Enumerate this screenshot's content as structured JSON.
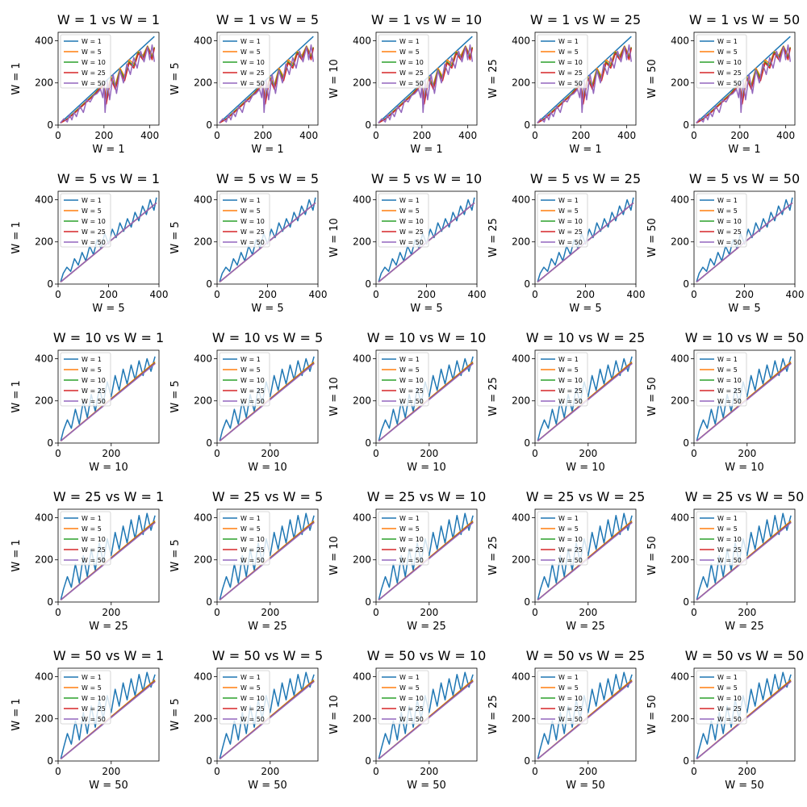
{
  "chart_data": {
    "type": "line",
    "grid": false,
    "legend_placement": "upper-left",
    "window_sizes": [
      1,
      5,
      10,
      25,
      50
    ],
    "series_colors": [
      "#1f77b4",
      "#ff7f0e",
      "#2ca02c",
      "#d62728",
      "#9467bd"
    ],
    "series_names": [
      "W = 1",
      "W = 5",
      "W = 10",
      "W = 25",
      "W = 50"
    ],
    "row_xlim": [
      [
        0,
        440
      ],
      [
        0,
        400
      ],
      [
        0,
        380
      ],
      [
        0,
        380
      ],
      [
        0,
        380
      ]
    ],
    "row_xticks": [
      [
        0,
        200,
        400
      ],
      [
        0,
        200,
        400
      ],
      [
        0,
        200
      ],
      [
        0,
        200
      ],
      [
        0,
        200
      ]
    ],
    "ylim": [
      0,
      440
    ],
    "yticks": [
      0,
      200,
      400
    ],
    "subplots": [
      {
        "title": "W = 1 vs W = 1",
        "xlabel": "W = 1",
        "ylabel": "W = 1",
        "row": 0,
        "col": 0
      },
      {
        "title": "W = 1 vs W = 5",
        "xlabel": "W = 1",
        "ylabel": "W = 5",
        "row": 0,
        "col": 1
      },
      {
        "title": "W = 1 vs W = 10",
        "xlabel": "W = 1",
        "ylabel": "W = 10",
        "row": 0,
        "col": 2
      },
      {
        "title": "W = 1 vs W = 25",
        "xlabel": "W = 1",
        "ylabel": "W = 25",
        "row": 0,
        "col": 3
      },
      {
        "title": "W = 1 vs W = 50",
        "xlabel": "W = 1",
        "ylabel": "W = 50",
        "row": 0,
        "col": 4
      },
      {
        "title": "W = 5 vs W = 1",
        "xlabel": "W = 5",
        "ylabel": "W = 1",
        "row": 1,
        "col": 0
      },
      {
        "title": "W = 5 vs W = 5",
        "xlabel": "W = 5",
        "ylabel": "W = 5",
        "row": 1,
        "col": 1
      },
      {
        "title": "W = 5 vs W = 10",
        "xlabel": "W = 5",
        "ylabel": "W = 10",
        "row": 1,
        "col": 2
      },
      {
        "title": "W = 5 vs W = 25",
        "xlabel": "W = 5",
        "ylabel": "W = 25",
        "row": 1,
        "col": 3
      },
      {
        "title": "W = 5 vs W = 50",
        "xlabel": "W = 5",
        "ylabel": "W = 50",
        "row": 1,
        "col": 4
      },
      {
        "title": "W = 10 vs W = 1",
        "xlabel": "W = 10",
        "ylabel": "W = 1",
        "row": 2,
        "col": 0
      },
      {
        "title": "W = 10 vs W = 5",
        "xlabel": "W = 10",
        "ylabel": "W = 5",
        "row": 2,
        "col": 1
      },
      {
        "title": "W = 10 vs W = 10",
        "xlabel": "W = 10",
        "ylabel": "W = 10",
        "row": 2,
        "col": 2
      },
      {
        "title": "W = 10 vs W = 25",
        "xlabel": "W = 10",
        "ylabel": "W = 25",
        "row": 2,
        "col": 3
      },
      {
        "title": "W = 10 vs W = 50",
        "xlabel": "W = 10",
        "ylabel": "W = 50",
        "row": 2,
        "col": 4
      },
      {
        "title": "W = 25 vs W = 1",
        "xlabel": "W = 25",
        "ylabel": "W = 1",
        "row": 3,
        "col": 0
      },
      {
        "title": "W = 25 vs W = 5",
        "xlabel": "W = 25",
        "ylabel": "W = 5",
        "row": 3,
        "col": 1
      },
      {
        "title": "W = 25 vs W = 10",
        "xlabel": "W = 25",
        "ylabel": "W = 10",
        "row": 3,
        "col": 2
      },
      {
        "title": "W = 25 vs W = 25",
        "xlabel": "W = 25",
        "ylabel": "W = 25",
        "row": 3,
        "col": 3
      },
      {
        "title": "W = 25 vs W = 50",
        "xlabel": "W = 25",
        "ylabel": "W = 50",
        "row": 3,
        "col": 4
      },
      {
        "title": "W = 50 vs W = 1",
        "xlabel": "W = 50",
        "ylabel": "W = 1",
        "row": 4,
        "col": 0
      },
      {
        "title": "W = 50 vs W = 5",
        "xlabel": "W = 50",
        "ylabel": "W = 5",
        "row": 4,
        "col": 1
      },
      {
        "title": "W = 50 vs W = 10",
        "xlabel": "W = 50",
        "ylabel": "W = 10",
        "row": 4,
        "col": 2
      },
      {
        "title": "W = 50 vs W = 25",
        "xlabel": "W = 50",
        "ylabel": "W = 25",
        "row": 4,
        "col": 3
      },
      {
        "title": "W = 50 vs W = 50",
        "xlabel": "W = 50",
        "ylabel": "W = 50",
        "row": 4,
        "col": 4
      }
    ],
    "series_by_row": [
      [
        {
          "name": "W = 1",
          "x": [
            10,
            420
          ],
          "y": [
            10,
            420
          ]
        },
        {
          "name": "W = 5",
          "x": [
            10,
            40,
            70,
            100,
            130,
            160,
            180,
            200,
            210,
            230,
            250,
            270,
            290,
            310,
            330,
            350,
            370,
            390,
            410,
            420
          ],
          "y": [
            10,
            30,
            60,
            90,
            120,
            150,
            175,
            195,
            120,
            230,
            190,
            270,
            230,
            310,
            290,
            350,
            330,
            375,
            330,
            370
          ]
        },
        {
          "name": "W = 10",
          "x": [
            10,
            40,
            70,
            100,
            130,
            160,
            180,
            200,
            210,
            230,
            250,
            270,
            290,
            310,
            330,
            350,
            370,
            390,
            410,
            420
          ],
          "y": [
            10,
            30,
            58,
            88,
            118,
            148,
            172,
            192,
            110,
            225,
            180,
            262,
            220,
            300,
            280,
            345,
            320,
            372,
            320,
            368
          ]
        },
        {
          "name": "W = 25",
          "x": [
            10,
            40,
            70,
            100,
            130,
            160,
            180,
            200,
            210,
            230,
            250,
            270,
            290,
            310,
            330,
            350,
            370,
            390,
            410,
            420
          ],
          "y": [
            10,
            28,
            55,
            85,
            115,
            145,
            170,
            190,
            100,
            220,
            170,
            255,
            210,
            295,
            270,
            340,
            310,
            370,
            310,
            365
          ]
        },
        {
          "name": "W = 50",
          "x": [
            10,
            25,
            40,
            50,
            60,
            70,
            80,
            95,
            110,
            125,
            140,
            155,
            170,
            185,
            195,
            200,
            205,
            215,
            225,
            240,
            255,
            270,
            285,
            300,
            315,
            330,
            345,
            360,
            375,
            390,
            400,
            410,
            420
          ],
          "y": [
            10,
            30,
            15,
            50,
            25,
            60,
            40,
            90,
            60,
            120,
            110,
            140,
            150,
            170,
            130,
            200,
            60,
            210,
            120,
            240,
            150,
            260,
            200,
            290,
            240,
            320,
            270,
            350,
            300,
            370,
            310,
            380,
            300
          ]
        }
      ],
      [
        {
          "name": "W = 1",
          "x": [
            10,
            20,
            35,
            50,
            65,
            80,
            95,
            110,
            125,
            140,
            155,
            170,
            185,
            200,
            215,
            230,
            245,
            260,
            275,
            290,
            305,
            320,
            335,
            350,
            365,
            380,
            390
          ],
          "y": [
            10,
            50,
            80,
            60,
            120,
            90,
            150,
            110,
            180,
            140,
            210,
            170,
            240,
            190,
            260,
            220,
            290,
            250,
            310,
            270,
            340,
            300,
            370,
            330,
            400,
            350,
            410
          ]
        },
        {
          "name": "W = 5",
          "x": [
            10,
            390
          ],
          "y": [
            10,
            385
          ]
        },
        {
          "name": "W = 10",
          "x": [
            10,
            390
          ],
          "y": [
            10,
            385
          ]
        },
        {
          "name": "W = 25",
          "x": [
            10,
            390
          ],
          "y": [
            10,
            385
          ]
        },
        {
          "name": "W = 50",
          "x": [
            10,
            390
          ],
          "y": [
            10,
            385
          ]
        }
      ],
      [
        {
          "name": "W = 1",
          "x": [
            10,
            20,
            35,
            50,
            65,
            80,
            95,
            110,
            125,
            140,
            155,
            170,
            185,
            200,
            215,
            230,
            245,
            260,
            275,
            290,
            305,
            320,
            335,
            350,
            365
          ],
          "y": [
            10,
            60,
            110,
            70,
            160,
            90,
            200,
            120,
            230,
            150,
            260,
            190,
            290,
            220,
            320,
            250,
            350,
            280,
            370,
            300,
            390,
            320,
            400,
            340,
            410
          ]
        },
        {
          "name": "W = 5",
          "x": [
            10,
            365
          ],
          "y": [
            10,
            385
          ]
        },
        {
          "name": "W = 10",
          "x": [
            10,
            365
          ],
          "y": [
            10,
            380
          ]
        },
        {
          "name": "W = 25",
          "x": [
            10,
            365
          ],
          "y": [
            10,
            378
          ]
        },
        {
          "name": "W = 50",
          "x": [
            10,
            365
          ],
          "y": [
            10,
            376
          ]
        }
      ],
      [
        {
          "name": "W = 1",
          "x": [
            10,
            20,
            35,
            50,
            65,
            80,
            95,
            110,
            125,
            140,
            155,
            170,
            185,
            200,
            215,
            230,
            245,
            260,
            275,
            290,
            305,
            320,
            335,
            350,
            365
          ],
          "y": [
            10,
            60,
            120,
            70,
            180,
            90,
            220,
            120,
            250,
            150,
            280,
            190,
            300,
            220,
            330,
            250,
            360,
            280,
            390,
            300,
            410,
            320,
            420,
            340,
            410
          ]
        },
        {
          "name": "W = 5",
          "x": [
            10,
            365
          ],
          "y": [
            10,
            385
          ]
        },
        {
          "name": "W = 10",
          "x": [
            10,
            365
          ],
          "y": [
            10,
            380
          ]
        },
        {
          "name": "W = 25",
          "x": [
            10,
            365
          ],
          "y": [
            10,
            378
          ]
        },
        {
          "name": "W = 50",
          "x": [
            10,
            365
          ],
          "y": [
            10,
            376
          ]
        }
      ],
      [
        {
          "name": "W = 1",
          "x": [
            10,
            20,
            35,
            50,
            65,
            80,
            95,
            110,
            125,
            140,
            155,
            170,
            185,
            200,
            215,
            230,
            245,
            260,
            275,
            290,
            305,
            320,
            335,
            350,
            365
          ],
          "y": [
            10,
            60,
            130,
            80,
            190,
            100,
            230,
            130,
            260,
            160,
            290,
            200,
            310,
            230,
            340,
            260,
            370,
            290,
            390,
            310,
            410,
            330,
            420,
            350,
            410
          ]
        },
        {
          "name": "W = 5",
          "x": [
            10,
            365
          ],
          "y": [
            10,
            385
          ]
        },
        {
          "name": "W = 10",
          "x": [
            10,
            365
          ],
          "y": [
            10,
            380
          ]
        },
        {
          "name": "W = 25",
          "x": [
            10,
            365
          ],
          "y": [
            10,
            378
          ]
        },
        {
          "name": "W = 50",
          "x": [
            10,
            365
          ],
          "y": [
            10,
            376
          ]
        }
      ]
    ]
  }
}
